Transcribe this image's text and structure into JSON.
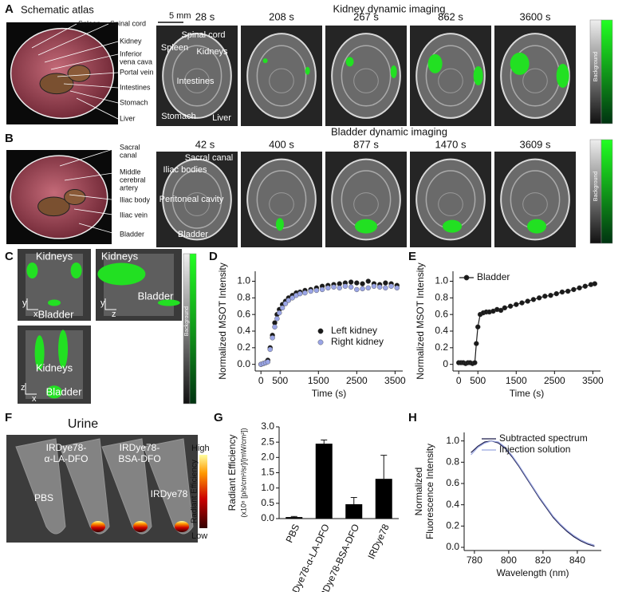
{
  "panels": {
    "A": {
      "label": "A",
      "atlas_title": "Schematic atlas",
      "imaging_title": "Kidney dynamic imaging",
      "scale": "5 mm",
      "atlas_labels": [
        [
          "Spleen"
        ],
        [
          "Spinal cord"
        ],
        [
          "Kidney"
        ],
        [
          "Inferior",
          "vena cava"
        ],
        [
          "Portal vein"
        ],
        [
          "Intestines"
        ],
        [
          "Stomach"
        ],
        [
          "Liver"
        ]
      ],
      "times": [
        "28 s",
        "208 s",
        "267 s",
        "862 s",
        "3600 s"
      ],
      "image_labels": [
        "Spinal cord",
        "Spleen",
        "Kidneys",
        "Intestines",
        "Stomach",
        "Liver"
      ],
      "colorbar": "Background"
    },
    "B": {
      "label": "B",
      "imaging_title": "Bladder dynamic imaging",
      "atlas_labels": [
        [
          "Sacral",
          "canal"
        ],
        [
          "Middle",
          "cerebral",
          "artery"
        ],
        [
          "Iliac body"
        ],
        [
          "Iliac vein"
        ],
        [
          "Bladder"
        ]
      ],
      "times": [
        "42 s",
        "400 s",
        "877 s",
        "1470 s",
        "3609 s"
      ],
      "image_labels": [
        "Sacral canal",
        "Iliac bodies",
        "Peritoneal cavity",
        "Bladder"
      ],
      "colorbar": "Background"
    },
    "C": {
      "label": "C",
      "views": [
        {
          "labels": [
            "Kidneys",
            "Bladder"
          ],
          "axes": [
            "y",
            "x"
          ]
        },
        {
          "labels": [
            "Kidneys",
            "Bladder"
          ],
          "axes": [
            "y",
            "z"
          ]
        },
        {
          "labels": [
            "Kidneys",
            "Bladder"
          ],
          "axes": [
            "z",
            "x"
          ]
        }
      ],
      "colorbar": "Background"
    },
    "D": {
      "label": "D"
    },
    "E": {
      "label": "E"
    },
    "F": {
      "label": "F",
      "title": "Urine",
      "tube_labels": [
        [
          "PBS"
        ],
        [
          "IRDye78-",
          "α-LA-DFO"
        ],
        [
          "IRDye78-",
          "BSA-DFO"
        ],
        [
          "IRDye78"
        ]
      ],
      "scale_high": "High",
      "scale_low": "Low",
      "scale_title": "Radiant Efficiency"
    },
    "G": {
      "label": "G"
    },
    "H": {
      "label": "H"
    }
  },
  "chart_data": [
    {
      "type": "scatter",
      "ylabel": "Normalized MSOT Intensity",
      "xlabel": "Time (s)",
      "x": [
        0,
        60,
        120,
        180,
        240,
        300,
        360,
        420,
        480,
        560,
        640,
        720,
        820,
        920,
        1020,
        1150,
        1300,
        1450,
        1600,
        1750,
        1900,
        2050,
        2200,
        2350,
        2500,
        2650,
        2800,
        2950,
        3100,
        3250,
        3400,
        3550
      ],
      "series": [
        {
          "name": "Left kidney",
          "color": "#1a1a1a",
          "values": [
            0.0,
            0.01,
            0.02,
            0.05,
            0.2,
            0.35,
            0.5,
            0.6,
            0.66,
            0.72,
            0.76,
            0.8,
            0.83,
            0.86,
            0.87,
            0.89,
            0.9,
            0.92,
            0.94,
            0.95,
            0.96,
            0.97,
            0.98,
            0.99,
            0.98,
            0.97,
            1.0,
            0.97,
            0.96,
            0.98,
            0.97,
            0.95
          ]
        },
        {
          "name": "Right kidney",
          "color": "#9aa5e6",
          "values": [
            0.0,
            0.01,
            0.02,
            0.03,
            0.18,
            0.32,
            0.45,
            0.55,
            0.62,
            0.68,
            0.73,
            0.77,
            0.8,
            0.83,
            0.85,
            0.86,
            0.88,
            0.89,
            0.9,
            0.92,
            0.93,
            0.92,
            0.94,
            0.93,
            0.9,
            0.91,
            0.92,
            0.94,
            0.93,
            0.92,
            0.94,
            0.92
          ]
        }
      ],
      "xlim": [
        -150,
        3700
      ],
      "xticks": [
        0,
        500,
        1500,
        2500,
        3500
      ],
      "ylim": [
        -0.08,
        1.12
      ],
      "yticks": [
        {
          "value": 0,
          "label": "0.0"
        },
        0.2,
        0.4,
        0.6,
        0.8,
        {
          "value": 1,
          "label": "1.0"
        }
      ],
      "legend": "lower right"
    },
    {
      "type": "line",
      "markers": true,
      "ylabel": "Normalized MSOT Intensity",
      "xlabel": "Time (s)",
      "x": [
        0,
        60,
        120,
        180,
        240,
        300,
        360,
        420,
        460,
        500,
        560,
        640,
        720,
        800,
        900,
        1000,
        1100,
        1200,
        1350,
        1500,
        1650,
        1800,
        1950,
        2100,
        2250,
        2400,
        2550,
        2700,
        2850,
        3000,
        3150,
        3300,
        3450,
        3550
      ],
      "series": [
        {
          "name": "Bladder",
          "color": "#1a1a1a",
          "values": [
            0.02,
            0.02,
            0.02,
            0.01,
            0.02,
            0.02,
            0.01,
            0.02,
            0.25,
            0.45,
            0.6,
            0.62,
            0.63,
            0.63,
            0.64,
            0.66,
            0.65,
            0.68,
            0.7,
            0.72,
            0.74,
            0.76,
            0.78,
            0.8,
            0.82,
            0.83,
            0.85,
            0.87,
            0.88,
            0.9,
            0.92,
            0.94,
            0.96,
            0.97
          ]
        }
      ],
      "xlim": [
        -150,
        3700
      ],
      "xticks": [
        0,
        500,
        1500,
        2500,
        3500
      ],
      "ylim": [
        -0.08,
        1.12
      ],
      "yticks": [
        0,
        0.2,
        0.4,
        0.6,
        0.8,
        {
          "value": 1,
          "label": "1.0"
        }
      ],
      "legend": "upper left"
    },
    {
      "type": "bar",
      "ylabel": [
        "Radiant Efficiency",
        "(x10⁸ [p/s/cm²/sr]/[mW/cm²])"
      ],
      "categories": [
        "PBS",
        "IRDye78-α-LA-DFO",
        "IRDye78-BSA-DFO",
        "IRDye78"
      ],
      "values": [
        0.05,
        2.45,
        0.47,
        1.3
      ],
      "errors": [
        0.02,
        0.12,
        0.22,
        0.77
      ],
      "color": "#000000",
      "ylim": [
        0,
        3
      ],
      "yticks": [
        {
          "value": 0,
          "label": "0.0"
        },
        0.5,
        {
          "value": 1,
          "label": "1.0"
        },
        1.5,
        {
          "value": 2,
          "label": "2.0"
        },
        2.5,
        {
          "value": 3,
          "label": "3.0"
        }
      ]
    },
    {
      "type": "line",
      "ylabel": [
        "Normalized",
        "Fluorescence Intensity"
      ],
      "xlabel": "Wavelength (nm)",
      "x": [
        778,
        782,
        786,
        790,
        794,
        798,
        802,
        806,
        810,
        814,
        818,
        822,
        826,
        830,
        834,
        838,
        842,
        846,
        850
      ],
      "series": [
        {
          "name": "Subtracted spectrum",
          "color": "#1a1a4a",
          "values": [
            0.89,
            0.95,
            0.99,
            1.0,
            0.98,
            0.93,
            0.85,
            0.76,
            0.66,
            0.56,
            0.46,
            0.37,
            0.28,
            0.21,
            0.15,
            0.1,
            0.06,
            0.03,
            0.01
          ]
        },
        {
          "name": "Injection solution",
          "color": "#9aa6e0",
          "values": [
            0.87,
            0.94,
            0.98,
            1.0,
            0.99,
            0.94,
            0.86,
            0.77,
            0.67,
            0.57,
            0.47,
            0.38,
            0.29,
            0.22,
            0.16,
            0.11,
            0.07,
            0.04,
            0.02
          ]
        }
      ],
      "xlim": [
        774,
        854
      ],
      "xticks": [
        780,
        800,
        820,
        840
      ],
      "ylim": [
        -0.03,
        1.08
      ],
      "yticks": [
        {
          "value": 0,
          "label": "0.0"
        },
        0.2,
        0.4,
        0.6,
        0.8,
        {
          "value": 1,
          "label": "1.0"
        }
      ],
      "legend": "upper right"
    }
  ]
}
